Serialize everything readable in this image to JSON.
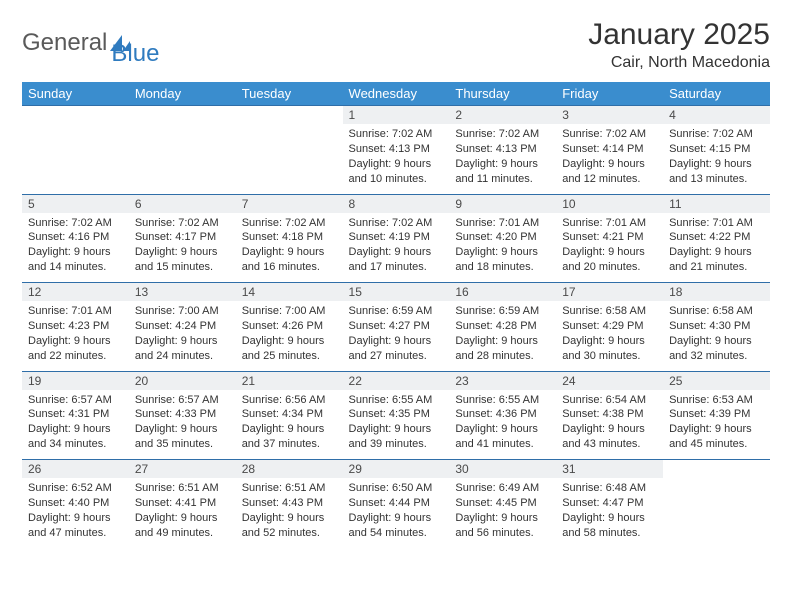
{
  "brand": {
    "name1": "General",
    "name2": "Blue"
  },
  "title": {
    "month": "January 2025",
    "location": "Cair, North Macedonia"
  },
  "colors": {
    "header_bg": "#3a8dce",
    "header_text": "#ffffff",
    "daynum_bg": "#eef0f2",
    "border": "#2f6ea8",
    "brand_blue": "#2f7bbf",
    "text": "#333333"
  },
  "weekdays": [
    "Sunday",
    "Monday",
    "Tuesday",
    "Wednesday",
    "Thursday",
    "Friday",
    "Saturday"
  ],
  "weeks": [
    [
      null,
      null,
      null,
      {
        "n": "1",
        "sr": "7:02 AM",
        "ss": "4:13 PM",
        "dl": "9 hours and 10 minutes."
      },
      {
        "n": "2",
        "sr": "7:02 AM",
        "ss": "4:13 PM",
        "dl": "9 hours and 11 minutes."
      },
      {
        "n": "3",
        "sr": "7:02 AM",
        "ss": "4:14 PM",
        "dl": "9 hours and 12 minutes."
      },
      {
        "n": "4",
        "sr": "7:02 AM",
        "ss": "4:15 PM",
        "dl": "9 hours and 13 minutes."
      }
    ],
    [
      {
        "n": "5",
        "sr": "7:02 AM",
        "ss": "4:16 PM",
        "dl": "9 hours and 14 minutes."
      },
      {
        "n": "6",
        "sr": "7:02 AM",
        "ss": "4:17 PM",
        "dl": "9 hours and 15 minutes."
      },
      {
        "n": "7",
        "sr": "7:02 AM",
        "ss": "4:18 PM",
        "dl": "9 hours and 16 minutes."
      },
      {
        "n": "8",
        "sr": "7:02 AM",
        "ss": "4:19 PM",
        "dl": "9 hours and 17 minutes."
      },
      {
        "n": "9",
        "sr": "7:01 AM",
        "ss": "4:20 PM",
        "dl": "9 hours and 18 minutes."
      },
      {
        "n": "10",
        "sr": "7:01 AM",
        "ss": "4:21 PM",
        "dl": "9 hours and 20 minutes."
      },
      {
        "n": "11",
        "sr": "7:01 AM",
        "ss": "4:22 PM",
        "dl": "9 hours and 21 minutes."
      }
    ],
    [
      {
        "n": "12",
        "sr": "7:01 AM",
        "ss": "4:23 PM",
        "dl": "9 hours and 22 minutes."
      },
      {
        "n": "13",
        "sr": "7:00 AM",
        "ss": "4:24 PM",
        "dl": "9 hours and 24 minutes."
      },
      {
        "n": "14",
        "sr": "7:00 AM",
        "ss": "4:26 PM",
        "dl": "9 hours and 25 minutes."
      },
      {
        "n": "15",
        "sr": "6:59 AM",
        "ss": "4:27 PM",
        "dl": "9 hours and 27 minutes."
      },
      {
        "n": "16",
        "sr": "6:59 AM",
        "ss": "4:28 PM",
        "dl": "9 hours and 28 minutes."
      },
      {
        "n": "17",
        "sr": "6:58 AM",
        "ss": "4:29 PM",
        "dl": "9 hours and 30 minutes."
      },
      {
        "n": "18",
        "sr": "6:58 AM",
        "ss": "4:30 PM",
        "dl": "9 hours and 32 minutes."
      }
    ],
    [
      {
        "n": "19",
        "sr": "6:57 AM",
        "ss": "4:31 PM",
        "dl": "9 hours and 34 minutes."
      },
      {
        "n": "20",
        "sr": "6:57 AM",
        "ss": "4:33 PM",
        "dl": "9 hours and 35 minutes."
      },
      {
        "n": "21",
        "sr": "6:56 AM",
        "ss": "4:34 PM",
        "dl": "9 hours and 37 minutes."
      },
      {
        "n": "22",
        "sr": "6:55 AM",
        "ss": "4:35 PM",
        "dl": "9 hours and 39 minutes."
      },
      {
        "n": "23",
        "sr": "6:55 AM",
        "ss": "4:36 PM",
        "dl": "9 hours and 41 minutes."
      },
      {
        "n": "24",
        "sr": "6:54 AM",
        "ss": "4:38 PM",
        "dl": "9 hours and 43 minutes."
      },
      {
        "n": "25",
        "sr": "6:53 AM",
        "ss": "4:39 PM",
        "dl": "9 hours and 45 minutes."
      }
    ],
    [
      {
        "n": "26",
        "sr": "6:52 AM",
        "ss": "4:40 PM",
        "dl": "9 hours and 47 minutes."
      },
      {
        "n": "27",
        "sr": "6:51 AM",
        "ss": "4:41 PM",
        "dl": "9 hours and 49 minutes."
      },
      {
        "n": "28",
        "sr": "6:51 AM",
        "ss": "4:43 PM",
        "dl": "9 hours and 52 minutes."
      },
      {
        "n": "29",
        "sr": "6:50 AM",
        "ss": "4:44 PM",
        "dl": "9 hours and 54 minutes."
      },
      {
        "n": "30",
        "sr": "6:49 AM",
        "ss": "4:45 PM",
        "dl": "9 hours and 56 minutes."
      },
      {
        "n": "31",
        "sr": "6:48 AM",
        "ss": "4:47 PM",
        "dl": "9 hours and 58 minutes."
      },
      null
    ]
  ],
  "labels": {
    "sunrise": "Sunrise:",
    "sunset": "Sunset:",
    "daylight": "Daylight:"
  }
}
